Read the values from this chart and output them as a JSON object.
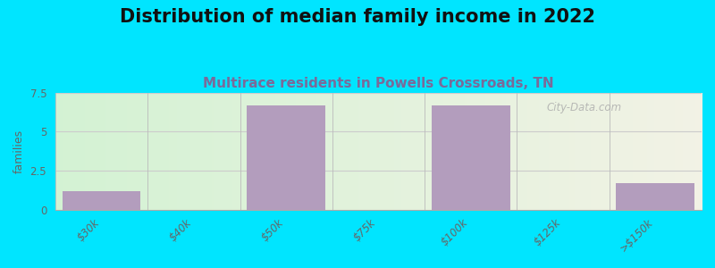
{
  "title": "Distribution of median family income in 2022",
  "subtitle": "Multirace residents in Powells Crossroads, TN",
  "categories": [
    "$30k",
    "$40k",
    "$50k",
    "$75k",
    "$100k",
    "$125k",
    ">$150k"
  ],
  "values": [
    1.2,
    0,
    6.7,
    0,
    6.7,
    0,
    1.7
  ],
  "bar_color": "#b39dbd",
  "bg_left_color": "#d4f0d4",
  "bg_right_color": "#f0f0e8",
  "ylabel": "families",
  "ylim": [
    0,
    7.5
  ],
  "yticks": [
    0,
    2.5,
    5,
    7.5
  ],
  "title_fontsize": 15,
  "subtitle_fontsize": 11,
  "subtitle_color": "#7a6a9a",
  "background_color": "#00e5ff",
  "bar_width": 0.85,
  "tick_label_color": "#666666",
  "axis_label_color": "#666666",
  "watermark": "City-Data.com",
  "watermark_color": "#aaaaaa"
}
